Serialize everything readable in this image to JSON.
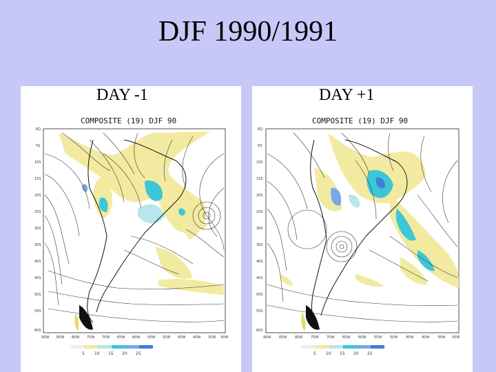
{
  "slide": {
    "title": "DJF 1990/1991"
  },
  "panels": [
    {
      "label": "DAY -1",
      "caption": "COMPOSITE (19) DJF 90",
      "colorbar": [
        "5",
        "10",
        "15",
        "20",
        "25"
      ]
    },
    {
      "label": "DAY +1",
      "caption": "COMPOSITE (19) DJF 90",
      "colorbar": [
        "5",
        "10",
        "15",
        "20",
        "25"
      ]
    }
  ],
  "colors": {
    "background": "#c8c8f8",
    "shade_5_10": "#f2eaa0",
    "shade_10_15": "#b8e6ec",
    "shade_15_20": "#3cc6d6",
    "shade_20_25": "#74a8e6",
    "shade_25_plus": "#3e7fd8"
  },
  "map": {
    "lat_labels": [
      "EQ",
      "5S",
      "10S",
      "15S",
      "20S",
      "25S",
      "30S",
      "35S",
      "40S",
      "45S",
      "50S",
      "55S",
      "60S"
    ],
    "lon_labels": [
      "90W",
      "85W",
      "80W",
      "75W",
      "70W",
      "65W",
      "60W",
      "55W",
      "50W",
      "45W",
      "40W",
      "35W",
      "30W"
    ]
  }
}
